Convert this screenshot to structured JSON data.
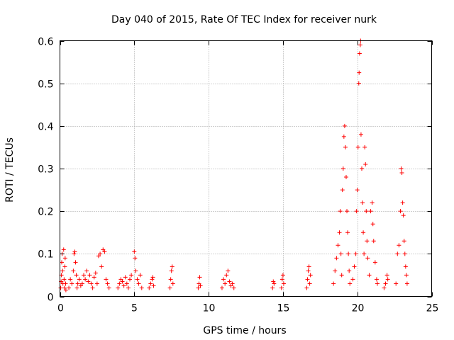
{
  "chart_data": {
    "type": "scatter",
    "title": "Day 040 of 2015, Rate Of TEC Index for receiver nurk",
    "xlabel": "GPS time / hours",
    "ylabel": "ROTI / TECUs",
    "xlim": [
      0,
      25
    ],
    "ylim": [
      0,
      0.6
    ],
    "xticks": [
      0,
      5,
      10,
      15,
      20,
      25
    ],
    "yticks": [
      0,
      0.1,
      0.2,
      0.3,
      0.4,
      0.5,
      0.6
    ],
    "xtick_labels": [
      "0",
      "5",
      "10",
      "15",
      "20",
      "25"
    ],
    "ytick_labels": [
      "0",
      "0.1",
      "0.2",
      "0.3",
      "0.4",
      "0.5",
      "0.6"
    ],
    "grid": true,
    "marker": "+",
    "color": "#ff0000",
    "series": [
      {
        "name": "ROTI",
        "points": [
          [
            0.05,
            0.02
          ],
          [
            0.08,
            0.035
          ],
          [
            0.1,
            0.05
          ],
          [
            0.12,
            0.08
          ],
          [
            0.15,
            0.1
          ],
          [
            0.18,
            0.06
          ],
          [
            0.2,
            0.03
          ],
          [
            0.25,
            0.11
          ],
          [
            0.28,
            0.04
          ],
          [
            0.3,
            0.02
          ],
          [
            0.33,
            0.07
          ],
          [
            0.35,
            0.09
          ],
          [
            0.38,
            0.03
          ],
          [
            0.4,
            0.015
          ],
          [
            0.6,
            0.02
          ],
          [
            0.7,
            0.04
          ],
          [
            0.8,
            0.03
          ],
          [
            0.9,
            0.06
          ],
          [
            0.95,
            0.1
          ],
          [
            1.0,
            0.105
          ],
          [
            1.05,
            0.08
          ],
          [
            1.1,
            0.05
          ],
          [
            1.15,
            0.02
          ],
          [
            1.2,
            0.03
          ],
          [
            1.3,
            0.04
          ],
          [
            1.4,
            0.025
          ],
          [
            1.5,
            0.03
          ],
          [
            1.6,
            0.05
          ],
          [
            1.7,
            0.04
          ],
          [
            1.8,
            0.06
          ],
          [
            1.9,
            0.035
          ],
          [
            2.0,
            0.05
          ],
          [
            2.1,
            0.03
          ],
          [
            2.2,
            0.02
          ],
          [
            2.3,
            0.045
          ],
          [
            2.4,
            0.055
          ],
          [
            2.5,
            0.03
          ],
          [
            2.6,
            0.095
          ],
          [
            2.7,
            0.1
          ],
          [
            2.8,
            0.07
          ],
          [
            2.9,
            0.11
          ],
          [
            3.0,
            0.105
          ],
          [
            3.1,
            0.04
          ],
          [
            3.2,
            0.03
          ],
          [
            3.3,
            0.02
          ],
          [
            3.9,
            0.02
          ],
          [
            4.0,
            0.03
          ],
          [
            4.1,
            0.04
          ],
          [
            4.2,
            0.035
          ],
          [
            4.3,
            0.025
          ],
          [
            4.4,
            0.045
          ],
          [
            4.5,
            0.03
          ],
          [
            4.6,
            0.02
          ],
          [
            4.7,
            0.04
          ],
          [
            4.8,
            0.05
          ],
          [
            5.0,
            0.105
          ],
          [
            5.05,
            0.09
          ],
          [
            5.1,
            0.06
          ],
          [
            5.2,
            0.04
          ],
          [
            5.3,
            0.03
          ],
          [
            5.4,
            0.05
          ],
          [
            5.5,
            0.02
          ],
          [
            6.0,
            0.02
          ],
          [
            6.1,
            0.03
          ],
          [
            6.2,
            0.04
          ],
          [
            6.25,
            0.045
          ],
          [
            6.3,
            0.025
          ],
          [
            7.4,
            0.02
          ],
          [
            7.45,
            0.04
          ],
          [
            7.5,
            0.06
          ],
          [
            7.55,
            0.07
          ],
          [
            7.6,
            0.03
          ],
          [
            9.3,
            0.02
          ],
          [
            9.35,
            0.03
          ],
          [
            9.4,
            0.045
          ],
          [
            9.45,
            0.025
          ],
          [
            10.9,
            0.02
          ],
          [
            11.0,
            0.04
          ],
          [
            11.1,
            0.03
          ],
          [
            11.2,
            0.05
          ],
          [
            11.3,
            0.06
          ],
          [
            11.4,
            0.035
          ],
          [
            11.5,
            0.025
          ],
          [
            11.6,
            0.03
          ],
          [
            11.7,
            0.02
          ],
          [
            14.3,
            0.02
          ],
          [
            14.35,
            0.035
          ],
          [
            14.4,
            0.03
          ],
          [
            14.9,
            0.02
          ],
          [
            14.95,
            0.04
          ],
          [
            15.0,
            0.05
          ],
          [
            15.05,
            0.03
          ],
          [
            16.6,
            0.02
          ],
          [
            16.65,
            0.04
          ],
          [
            16.7,
            0.06
          ],
          [
            16.75,
            0.07
          ],
          [
            16.8,
            0.03
          ],
          [
            16.85,
            0.05
          ],
          [
            18.4,
            0.03
          ],
          [
            18.5,
            0.06
          ],
          [
            18.6,
            0.09
          ],
          [
            18.7,
            0.12
          ],
          [
            18.8,
            0.15
          ],
          [
            18.85,
            0.2
          ],
          [
            18.9,
            0.1
          ],
          [
            18.95,
            0.05
          ],
          [
            19.0,
            0.25
          ],
          [
            19.05,
            0.3
          ],
          [
            19.1,
            0.375
          ],
          [
            19.15,
            0.4
          ],
          [
            19.2,
            0.35
          ],
          [
            19.25,
            0.28
          ],
          [
            19.3,
            0.2
          ],
          [
            19.35,
            0.15
          ],
          [
            19.4,
            0.1
          ],
          [
            19.45,
            0.06
          ],
          [
            19.5,
            0.03
          ],
          [
            19.7,
            0.04
          ],
          [
            19.8,
            0.07
          ],
          [
            19.9,
            0.1
          ],
          [
            19.95,
            0.2
          ],
          [
            20.0,
            0.25
          ],
          [
            20.05,
            0.35
          ],
          [
            20.1,
            0.5
          ],
          [
            20.12,
            0.525
          ],
          [
            20.15,
            0.57
          ],
          [
            20.2,
            0.59
          ],
          [
            20.22,
            0.6
          ],
          [
            20.25,
            0.38
          ],
          [
            20.3,
            0.3
          ],
          [
            20.35,
            0.22
          ],
          [
            20.4,
            0.15
          ],
          [
            20.45,
            0.1
          ],
          [
            20.5,
            0.35
          ],
          [
            20.55,
            0.31
          ],
          [
            20.6,
            0.2
          ],
          [
            20.65,
            0.13
          ],
          [
            20.7,
            0.09
          ],
          [
            20.8,
            0.05
          ],
          [
            20.9,
            0.2
          ],
          [
            21.0,
            0.22
          ],
          [
            21.05,
            0.17
          ],
          [
            21.1,
            0.13
          ],
          [
            21.2,
            0.08
          ],
          [
            21.3,
            0.04
          ],
          [
            21.35,
            0.03
          ],
          [
            21.8,
            0.02
          ],
          [
            21.9,
            0.03
          ],
          [
            22.0,
            0.05
          ],
          [
            22.05,
            0.04
          ],
          [
            22.6,
            0.03
          ],
          [
            22.7,
            0.1
          ],
          [
            22.8,
            0.12
          ],
          [
            22.9,
            0.2
          ],
          [
            22.95,
            0.3
          ],
          [
            23.0,
            0.29
          ],
          [
            23.05,
            0.22
          ],
          [
            23.1,
            0.19
          ],
          [
            23.15,
            0.13
          ],
          [
            23.2,
            0.1
          ],
          [
            23.25,
            0.07
          ],
          [
            23.3,
            0.05
          ],
          [
            23.35,
            0.03
          ]
        ]
      }
    ]
  }
}
